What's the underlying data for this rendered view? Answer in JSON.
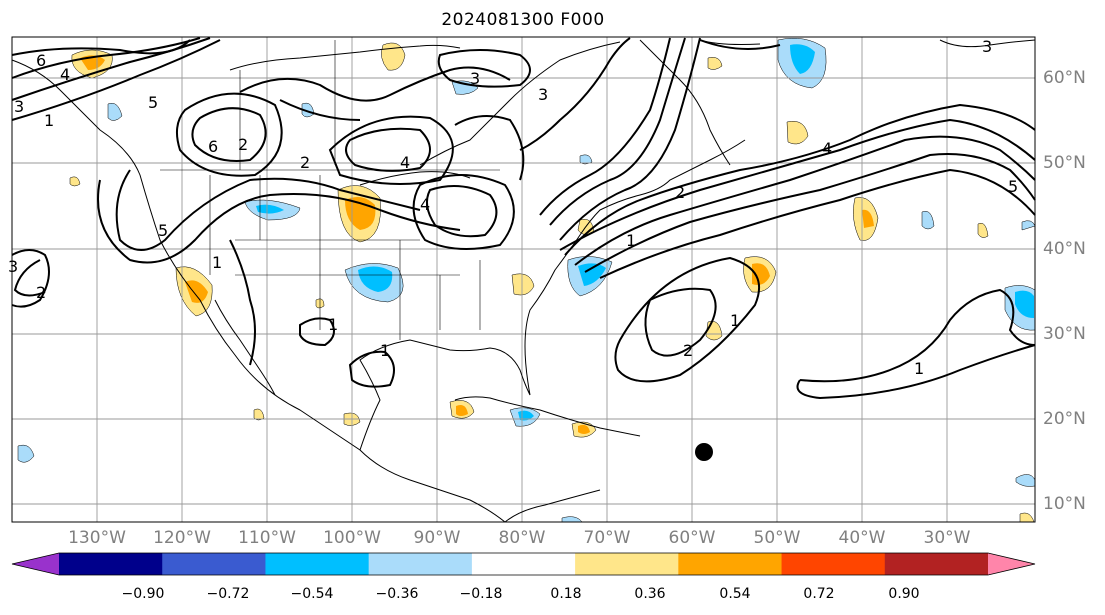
{
  "title": "2024081300 F000",
  "lat_labels": [
    "60°N",
    "50°N",
    "40°N",
    "30°N",
    "20°N",
    "10°N"
  ],
  "lon_labels": [
    "130°W",
    "120°W",
    "110°W",
    "100°W",
    "90°W",
    "80°W",
    "70°W",
    "60°W",
    "50°W",
    "40°W",
    "30°W"
  ],
  "colorbar": {
    "ticks": [
      "−0.90",
      "−0.72",
      "−0.54",
      "−0.36",
      "−0.18",
      "0.18",
      "0.36",
      "0.54",
      "0.72",
      "0.90"
    ],
    "colors": [
      "#9932cc",
      "#00008b",
      "#3a5bd0",
      "#00bfff",
      "#aadcfa",
      "#ffffff",
      "#ffe68a",
      "#ffa500",
      "#ff4500",
      "#b22222",
      "#ff85aa"
    ]
  },
  "contour_labels": [
    "6",
    "4",
    "3",
    "1",
    "2",
    "5",
    "1",
    "2",
    "4",
    "3",
    "1",
    "2",
    "3",
    "4",
    "5",
    "3",
    "1",
    "2",
    "1",
    "4",
    "5",
    "6",
    "3",
    "2",
    "1",
    "1"
  ],
  "marker": "storm-position-dot"
}
